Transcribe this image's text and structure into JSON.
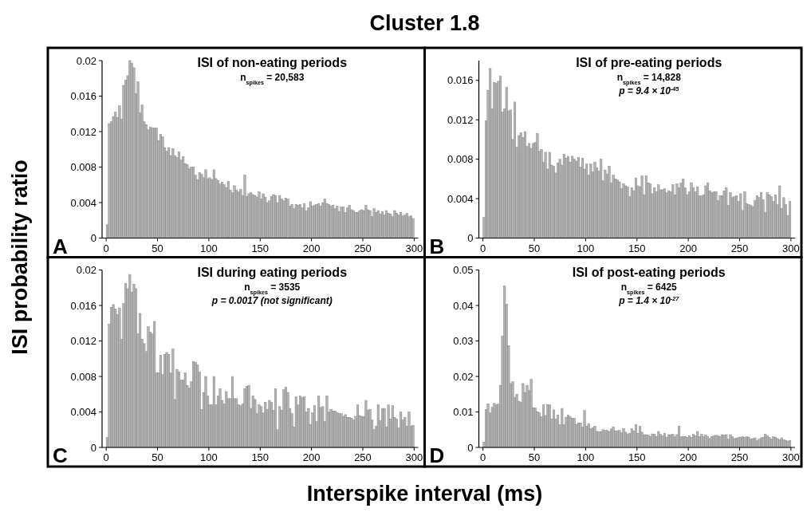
{
  "chart_data": [
    {
      "type": "other",
      "title": "Cluster 1.8",
      "xlabel": "Interspike interval (ms)",
      "ylabel": "ISI probability ratio"
    },
    {
      "type": "histogram",
      "title": "ISI of non-eating periods",
      "annotations": [
        "A",
        "n$_{spikes}$ = 20,583"
      ],
      "color": "#b3b3b3",
      "xlim": [
        -4,
        304
      ],
      "xticks": [
        0,
        50,
        100,
        150,
        200,
        250,
        300
      ],
      "ylim": [
        0,
        0.02
      ],
      "yticks": [
        0,
        0.004,
        0.008,
        0.012,
        0.016,
        0.02
      ],
      "bins": [
        0,
        2,
        4,
        6,
        8,
        10,
        12,
        14,
        16,
        18,
        20,
        22,
        24,
        26,
        28,
        30,
        32,
        34,
        36,
        38,
        40,
        42,
        44,
        46,
        48,
        50,
        52,
        54,
        56,
        58,
        60,
        62,
        64,
        66,
        68,
        70,
        72,
        74,
        76,
        78,
        80,
        82,
        84,
        86,
        88,
        90,
        92,
        94,
        96,
        98,
        100,
        102,
        104,
        106,
        108,
        110,
        112,
        114,
        116,
        118,
        120,
        122,
        124,
        126,
        128,
        130,
        132,
        134,
        136,
        138,
        140,
        142,
        144,
        146,
        148,
        150,
        152,
        154,
        156,
        158,
        160,
        162,
        164,
        166,
        168,
        170,
        172,
        174,
        176,
        178,
        180,
        182,
        184,
        186,
        188,
        190,
        192,
        194,
        196,
        198,
        200,
        202,
        204,
        206,
        208,
        210,
        212,
        214,
        216,
        218,
        220,
        222,
        224,
        226,
        228,
        230,
        232,
        234,
        236,
        238,
        240,
        242,
        244,
        246,
        248,
        250,
        252,
        254,
        256,
        258,
        260,
        262,
        264,
        266,
        268,
        270,
        272,
        274,
        276,
        278,
        280,
        282,
        284,
        286,
        288,
        290,
        292,
        294,
        296,
        298,
        300
      ],
      "values": [
        0.0015,
        0.0129,
        0.0131,
        0.0137,
        0.0142,
        0.0136,
        0.0149,
        0.0134,
        0.0172,
        0.0178,
        0.0183,
        0.02,
        0.0197,
        0.0192,
        0.0163,
        0.0176,
        0.0141,
        0.015,
        0.0131,
        0.0128,
        0.0122,
        0.0125,
        0.0124,
        0.0124,
        0.0124,
        0.011,
        0.0117,
        0.0114,
        0.0102,
        0.0098,
        0.0102,
        0.0093,
        0.0101,
        0.0093,
        0.0091,
        0.0097,
        0.0088,
        0.0092,
        0.0084,
        0.0083,
        0.0078,
        0.008,
        0.008,
        0.0071,
        0.0066,
        0.0074,
        0.0072,
        0.0068,
        0.0077,
        0.0067,
        0.0068,
        0.0066,
        0.0077,
        0.0067,
        0.0065,
        0.0061,
        0.0063,
        0.006,
        0.0057,
        0.0064,
        0.0054,
        0.0051,
        0.0059,
        0.0054,
        0.0052,
        0.0055,
        0.0048,
        0.0071,
        0.0047,
        0.005,
        0.0051,
        0.0049,
        0.0048,
        0.0046,
        0.0052,
        0.0044,
        0.005,
        0.0046,
        0.004,
        0.0042,
        0.0047,
        0.0049,
        0.0048,
        0.004,
        0.0048,
        0.0044,
        0.0042,
        0.0045,
        0.0044,
        0.0036,
        0.0038,
        0.0033,
        0.0038,
        0.0037,
        0.0038,
        0.0034,
        0.0039,
        0.0031,
        0.0034,
        0.0041,
        0.0036,
        0.0037,
        0.0038,
        0.0039,
        0.0036,
        0.004,
        0.0044,
        0.0039,
        0.0038,
        0.0036,
        0.0037,
        0.0033,
        0.0036,
        0.003,
        0.0035,
        0.0035,
        0.0029,
        0.0034,
        0.0037,
        0.0032,
        0.0031,
        0.0029,
        0.0029,
        0.0031,
        0.0032,
        0.0031,
        0.0037,
        0.0032,
        0.0031,
        0.0024,
        0.0033,
        0.0029,
        0.0031,
        0.0027,
        0.003,
        0.0026,
        0.0031,
        0.0028,
        0.0027,
        0.0024,
        0.0031,
        0.0028,
        0.0026,
        0.0029,
        0.0025,
        0.0026,
        0.0028,
        0.0024,
        0.0025,
        0.0022
      ]
    },
    {
      "type": "histogram",
      "title": "ISI of pre-eating periods",
      "annotations": [
        "B",
        "n$_{spikes}$ = 14,828",
        "p = 9.4 × 10$^{-45}$"
      ],
      "color": "#b3b3b3",
      "xlim": [
        -4,
        304
      ],
      "xticks": [
        0,
        50,
        100,
        150,
        200,
        250,
        300
      ],
      "ylim": [
        0,
        0.018
      ],
      "yticks": [
        0,
        0.004,
        0.008,
        0.012,
        0.016
      ],
      "bins": [
        0,
        2,
        4,
        6,
        8,
        10,
        12,
        14,
        16,
        18,
        20,
        22,
        24,
        26,
        28,
        30,
        32,
        34,
        36,
        38,
        40,
        42,
        44,
        46,
        48,
        50,
        52,
        54,
        56,
        58,
        60,
        62,
        64,
        66,
        68,
        70,
        72,
        74,
        76,
        78,
        80,
        82,
        84,
        86,
        88,
        90,
        92,
        94,
        96,
        98,
        100,
        102,
        104,
        106,
        108,
        110,
        112,
        114,
        116,
        118,
        120,
        122,
        124,
        126,
        128,
        130,
        132,
        134,
        136,
        138,
        140,
        142,
        144,
        146,
        148,
        150,
        152,
        154,
        156,
        158,
        160,
        162,
        164,
        166,
        168,
        170,
        172,
        174,
        176,
        178,
        180,
        182,
        184,
        186,
        188,
        190,
        192,
        194,
        196,
        198,
        200,
        202,
        204,
        206,
        208,
        210,
        212,
        214,
        216,
        218,
        220,
        222,
        224,
        226,
        228,
        230,
        232,
        234,
        236,
        238,
        240,
        242,
        244,
        246,
        248,
        250,
        252,
        254,
        256,
        258,
        260,
        262,
        264,
        266,
        268,
        270,
        272,
        274,
        276,
        278,
        280,
        282,
        284,
        286,
        288,
        290,
        292,
        294,
        296,
        298,
        300
      ],
      "values": [
        0.0021,
        0.0119,
        0.015,
        0.0172,
        0.0131,
        0.0158,
        0.0157,
        0.0159,
        0.0164,
        0.0128,
        0.0131,
        0.0153,
        0.0129,
        0.013,
        0.01,
        0.0138,
        0.0092,
        0.0104,
        0.0107,
        0.0102,
        0.0108,
        0.0093,
        0.0096,
        0.0091,
        0.0096,
        0.0097,
        0.0106,
        0.0088,
        0.009,
        0.0077,
        0.0087,
        0.007,
        0.0087,
        0.0074,
        0.0073,
        0.0066,
        0.0076,
        0.008,
        0.0074,
        0.0085,
        0.0081,
        0.0083,
        0.0077,
        0.0083,
        0.008,
        0.0078,
        0.0082,
        0.0072,
        0.0081,
        0.007,
        0.0075,
        0.0064,
        0.0075,
        0.0067,
        0.0077,
        0.0071,
        0.0068,
        0.008,
        0.0058,
        0.0069,
        0.0065,
        0.0073,
        0.0056,
        0.0064,
        0.006,
        0.0059,
        0.0057,
        0.005,
        0.0055,
        0.0053,
        0.0052,
        0.0042,
        0.0051,
        0.0048,
        0.0061,
        0.0053,
        0.0052,
        0.0063,
        0.0044,
        0.0063,
        0.0056,
        0.0055,
        0.0045,
        0.0051,
        0.0047,
        0.0054,
        0.0049,
        0.0049,
        0.005,
        0.0046,
        0.0048,
        0.0047,
        0.0054,
        0.0044,
        0.0055,
        0.0051,
        0.0056,
        0.006,
        0.0051,
        0.0044,
        0.0047,
        0.0056,
        0.0051,
        0.0047,
        0.0052,
        0.0043,
        0.0043,
        0.0044,
        0.0053,
        0.0056,
        0.0048,
        0.0046,
        0.0047,
        0.0047,
        0.0038,
        0.0043,
        0.0043,
        0.0048,
        0.0051,
        0.0033,
        0.0046,
        0.0041,
        0.0042,
        0.0043,
        0.0037,
        0.0045,
        0.0028,
        0.0047,
        0.0035,
        0.0034,
        0.0033,
        0.0032,
        0.0038,
        0.0043,
        0.0041,
        0.0046,
        0.0039,
        0.0026,
        0.0046,
        0.0044,
        0.0042,
        0.0037,
        0.0044,
        0.0034,
        0.0053,
        0.003,
        0.0041,
        0.0034,
        0.0023,
        0.0037
      ]
    },
    {
      "type": "histogram",
      "title": "ISI during eating periods",
      "annotations": [
        "C",
        "n$_{spikes}$ = 3535",
        "p = 0.0017 (not significant)"
      ],
      "color": "#b3b3b3",
      "xlim": [
        -4,
        304
      ],
      "xticks": [
        0,
        50,
        100,
        150,
        200,
        250,
        300
      ],
      "ylim": [
        0,
        0.02
      ],
      "yticks": [
        0,
        0.004,
        0.008,
        0.012,
        0.016,
        0.02
      ],
      "bins": [
        0,
        2,
        4,
        6,
        8,
        10,
        12,
        14,
        16,
        18,
        20,
        22,
        24,
        26,
        28,
        30,
        32,
        34,
        36,
        38,
        40,
        42,
        44,
        46,
        48,
        50,
        52,
        54,
        56,
        58,
        60,
        62,
        64,
        66,
        68,
        70,
        72,
        74,
        76,
        78,
        80,
        82,
        84,
        86,
        88,
        90,
        92,
        94,
        96,
        98,
        100,
        102,
        104,
        106,
        108,
        110,
        112,
        114,
        116,
        118,
        120,
        122,
        124,
        126,
        128,
        130,
        132,
        134,
        136,
        138,
        140,
        142,
        144,
        146,
        148,
        150,
        152,
        154,
        156,
        158,
        160,
        162,
        164,
        166,
        168,
        170,
        172,
        174,
        176,
        178,
        180,
        182,
        184,
        186,
        188,
        190,
        192,
        194,
        196,
        198,
        200,
        202,
        204,
        206,
        208,
        210,
        212,
        214,
        216,
        218,
        220,
        222,
        224,
        226,
        228,
        230,
        232,
        234,
        236,
        238,
        240,
        242,
        244,
        246,
        248,
        250,
        252,
        254,
        256,
        258,
        260,
        262,
        264,
        266,
        268,
        270,
        272,
        274,
        276,
        278,
        280,
        282,
        284,
        286,
        288,
        290,
        292,
        294,
        296,
        298,
        300
      ],
      "values": [
        0.0011,
        0.0139,
        0.0158,
        0.0161,
        0.0156,
        0.015,
        0.0157,
        0.0122,
        0.0162,
        0.0185,
        0.0179,
        0.0195,
        0.0175,
        0.0184,
        0.0179,
        0.0128,
        0.0151,
        0.0122,
        0.0117,
        0.0108,
        0.0136,
        0.013,
        0.0128,
        0.0142,
        0.0084,
        0.0084,
        0.0104,
        0.0082,
        0.0105,
        0.0107,
        0.0105,
        0.0084,
        0.0111,
        0.0054,
        0.0088,
        0.0085,
        0.0076,
        0.0076,
        0.0084,
        0.007,
        0.0067,
        0.0074,
        0.0097,
        0.0096,
        0.0093,
        0.0085,
        0.0043,
        0.0062,
        0.008,
        0.0058,
        0.0048,
        0.0048,
        0.008,
        0.0048,
        0.0058,
        0.0066,
        0.0053,
        0.0049,
        0.0063,
        0.0055,
        0.0055,
        0.008,
        0.0055,
        0.0055,
        0.0048,
        0.0047,
        0.0049,
        0.0066,
        0.0069,
        0.007,
        0.0044,
        0.0058,
        0.0054,
        0.0038,
        0.0048,
        0.0046,
        0.0039,
        0.0051,
        0.0043,
        0.0053,
        0.0051,
        0.0042,
        0.0066,
        0.002,
        0.0046,
        0.0042,
        0.0065,
        0.0068,
        0.0062,
        0.0044,
        0.0038,
        0.0023,
        0.0057,
        0.0048,
        0.0058,
        0.0056,
        0.0057,
        0.004,
        0.0044,
        0.0026,
        0.0039,
        0.0047,
        0.0029,
        0.0058,
        0.0045,
        0.0046,
        0.0029,
        0.0058,
        0.004,
        0.0043,
        0.0041,
        0.0041,
        0.0039,
        0.0038,
        0.0038,
        0.0035,
        0.0037,
        0.0034,
        0.0034,
        0.0033,
        0.0031,
        0.0035,
        0.0048,
        0.0036,
        0.0035,
        0.0035,
        0.0053,
        0.0042,
        0.0043,
        0.0031,
        0.002,
        0.0024,
        0.0048,
        0.003,
        0.0044,
        0.0044,
        0.0023,
        0.0048,
        0.0032,
        0.0047,
        0.0034,
        0.0032,
        0.0022,
        0.004,
        0.0031,
        0.0034,
        0.0024,
        0.004,
        0.0024,
        0.0025
      ]
    },
    {
      "type": "histogram",
      "title": "ISI of post-eating periods",
      "annotations": [
        "D",
        "n$_{spikes}$ = 6425",
        "p = 1.4 × 10$^{-27}$"
      ],
      "color": "#b3b3b3",
      "xlim": [
        -4,
        304
      ],
      "xticks": [
        0,
        50,
        100,
        150,
        200,
        250,
        300
      ],
      "ylim": [
        0,
        0.05
      ],
      "yticks": [
        0,
        0.01,
        0.02,
        0.03,
        0.04,
        0.05
      ],
      "bins": [
        0,
        2,
        4,
        6,
        8,
        10,
        12,
        14,
        16,
        18,
        20,
        22,
        24,
        26,
        28,
        30,
        32,
        34,
        36,
        38,
        40,
        42,
        44,
        46,
        48,
        50,
        52,
        54,
        56,
        58,
        60,
        62,
        64,
        66,
        68,
        70,
        72,
        74,
        76,
        78,
        80,
        82,
        84,
        86,
        88,
        90,
        92,
        94,
        96,
        98,
        100,
        102,
        104,
        106,
        108,
        110,
        112,
        114,
        116,
        118,
        120,
        122,
        124,
        126,
        128,
        130,
        132,
        134,
        136,
        138,
        140,
        142,
        144,
        146,
        148,
        150,
        152,
        154,
        156,
        158,
        160,
        162,
        164,
        166,
        168,
        170,
        172,
        174,
        176,
        178,
        180,
        182,
        184,
        186,
        188,
        190,
        192,
        194,
        196,
        198,
        200,
        202,
        204,
        206,
        208,
        210,
        212,
        214,
        216,
        218,
        220,
        222,
        224,
        226,
        228,
        230,
        232,
        234,
        236,
        238,
        240,
        242,
        244,
        246,
        248,
        250,
        252,
        254,
        256,
        258,
        260,
        262,
        264,
        266,
        268,
        270,
        272,
        274,
        276,
        278,
        280,
        282,
        284,
        286,
        288,
        290,
        292,
        294,
        296,
        298,
        300
      ],
      "values": [
        0.0015,
        0.0107,
        0.0123,
        0.0097,
        0.0113,
        0.0124,
        0.012,
        0.0122,
        0.0175,
        0.0314,
        0.0455,
        0.0404,
        0.0287,
        0.018,
        0.0185,
        0.014,
        0.015,
        0.013,
        0.0128,
        0.018,
        0.0155,
        0.0175,
        0.016,
        0.0192,
        0.0112,
        0.0111,
        0.0101,
        0.0098,
        0.0087,
        0.012,
        0.009,
        0.0121,
        0.012,
        0.008,
        0.0106,
        0.008,
        0.0091,
        0.0064,
        0.011,
        0.0064,
        0.0085,
        0.0091,
        0.0086,
        0.0082,
        0.0082,
        0.0065,
        0.0069,
        0.0069,
        0.0057,
        0.0104,
        0.0059,
        0.0067,
        0.0053,
        0.0056,
        0.006,
        0.0045,
        0.0044,
        0.0045,
        0.005,
        0.0048,
        0.0048,
        0.0045,
        0.0052,
        0.0058,
        0.0047,
        0.0047,
        0.0048,
        0.0041,
        0.0053,
        0.0043,
        0.0038,
        0.004,
        0.0053,
        0.0047,
        0.0065,
        0.004,
        0.0059,
        0.0043,
        0.0036,
        0.0036,
        0.0035,
        0.0031,
        0.0038,
        0.0037,
        0.0031,
        0.0045,
        0.0037,
        0.0033,
        0.004,
        0.0029,
        0.0036,
        0.0036,
        0.0037,
        0.003,
        0.0036,
        0.006,
        0.003,
        0.003,
        0.0031,
        0.0028,
        0.0033,
        0.0028,
        0.0037,
        0.0033,
        0.0045,
        0.0031,
        0.0037,
        0.003,
        0.0035,
        0.003,
        0.0025,
        0.0031,
        0.0032,
        0.0034,
        0.0033,
        0.0031,
        0.0036,
        0.0035,
        0.0036,
        0.0023,
        0.0036,
        0.0031,
        0.0025,
        0.0026,
        0.0028,
        0.0029,
        0.003,
        0.0028,
        0.003,
        0.0029,
        0.0024,
        0.0025,
        0.0027,
        0.0019,
        0.0023,
        0.0027,
        0.0029,
        0.0037,
        0.0033,
        0.0028,
        0.0024,
        0.003,
        0.0028,
        0.0025,
        0.0022,
        0.0027,
        0.0022,
        0.002,
        0.0018,
        0.002
      ]
    }
  ]
}
